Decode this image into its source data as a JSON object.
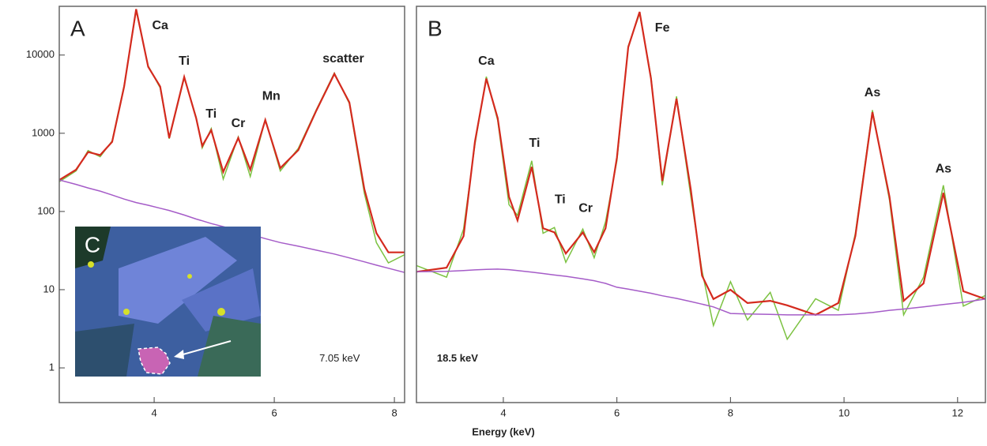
{
  "chart_data": [
    {
      "type": "line",
      "panel_label": "A",
      "log_y": true,
      "x": [
        2.42,
        2.7,
        2.9,
        3.1,
        3.3,
        3.5,
        3.7,
        3.9,
        4.1,
        4.25,
        4.5,
        4.7,
        4.8,
        4.95,
        5.15,
        5.4,
        5.6,
        5.85,
        6.1,
        6.4,
        6.7,
        7.0,
        7.25,
        7.5,
        7.7,
        7.9,
        8.17
      ],
      "series": [
        {
          "color": "#7cc242",
          "values": [
            240,
            330,
            600,
            500,
            800,
            4100,
            37000,
            7300,
            3800,
            850,
            5100,
            1600,
            650,
            1150,
            260,
            900,
            280,
            1500,
            330,
            640,
            2000,
            5900,
            2400,
            170,
            40,
            22,
            28
          ]
        },
        {
          "color": "#d42a1e",
          "values": [
            253,
            343,
            575,
            525,
            776,
            3960,
            38600,
            7080,
            3960,
            871,
            5250,
            1550,
            690,
            1096,
            320,
            871,
            343,
            1480,
            359,
            610,
            1950,
            5750,
            2480,
            192,
            53,
            30,
            30
          ]
        },
        {
          "color": "#a55cc8",
          "values": [
            253,
            222,
            200,
            182,
            162,
            144,
            130,
            120,
            110,
            103,
            90,
            80,
            76,
            70,
            64,
            57,
            51,
            45,
            40,
            36,
            32,
            28.6,
            25.5,
            22.7,
            20.6,
            18.8,
            16.6
          ]
        }
      ],
      "xlim": [
        2.42,
        8.17
      ],
      "xticks": [
        4,
        6,
        8
      ],
      "ylim": [
        0.36,
        42000
      ],
      "yticks": [
        1,
        10,
        100,
        1000,
        10000
      ],
      "annotations": [
        {
          "text": "Ca",
          "x": 4.1,
          "y": 23600
        },
        {
          "text": "Ti",
          "x": 4.5,
          "y": 8300
        },
        {
          "text": "Ti",
          "x": 4.95,
          "y": 1750
        },
        {
          "text": "Cr",
          "x": 5.4,
          "y": 1320
        },
        {
          "text": "Mn",
          "x": 5.95,
          "y": 2960
        },
        {
          "text": "scatter",
          "x": 7.15,
          "y": 8900
        }
      ],
      "energy_label": {
        "text": "7.05 keV",
        "x": 6.75,
        "y": 1.3
      },
      "inset_label": "C"
    },
    {
      "type": "line",
      "panel_label": "B",
      "log_y": true,
      "x": [
        2.47,
        3.0,
        3.3,
        3.5,
        3.7,
        3.9,
        4.1,
        4.25,
        4.5,
        4.7,
        4.9,
        5.1,
        5.4,
        5.6,
        5.8,
        6.0,
        6.2,
        6.4,
        6.6,
        6.8,
        7.05,
        7.3,
        7.5,
        7.7,
        8.0,
        8.3,
        8.7,
        9.0,
        9.5,
        9.9,
        10.2,
        10.5,
        10.8,
        11.05,
        11.4,
        11.75,
        12.1,
        12.49
      ],
      "series": [
        {
          "color": "#7cc242",
          "values": [
            28,
            22,
            60,
            350,
            1450,
            580,
            100,
            80,
            250,
            55,
            62,
            30,
            60,
            33,
            70,
            250,
            2750,
            5400,
            1450,
            150,
            960,
            120,
            25,
            8,
            20,
            9,
            16,
            6,
            14,
            11,
            55,
            720,
            110,
            10,
            22,
            150,
            12,
            15
          ]
        },
        {
          "color": "#d42a1e",
          "values": [
            24.6,
            26.8,
            51.8,
            372,
            1390,
            610,
            118,
            72,
            220,
            61,
            56,
            36,
            56,
            37,
            61,
            268,
            2680,
            5600,
            1390,
            164,
            915,
            138,
            22.7,
            13.9,
            16.9,
            12.8,
            13.4,
            12.2,
            10,
            12.8,
            51.8,
            690,
            118,
            13.4,
            19.3,
            128,
            16.4,
            13.9
          ]
        },
        {
          "color": "#a55cc8",
          "values": [
            24.6,
            24.8,
            25.2,
            25.6,
            25.9,
            26,
            25.7,
            25.2,
            24.4,
            23.7,
            23,
            22.4,
            21.2,
            20.4,
            19.3,
            17.8,
            17.1,
            16.4,
            15.7,
            14.9,
            14.1,
            13.2,
            12.5,
            11.8,
            10.3,
            10.2,
            10.1,
            10,
            10,
            10,
            10.2,
            10.5,
            11,
            11.3,
            11.8,
            12.4,
            13,
            13.9
          ]
        }
      ],
      "xlim": [
        2.47,
        12.49
      ],
      "xticks": [
        4,
        6,
        8,
        10,
        12
      ],
      "ylim": [
        1.6,
        6300
      ],
      "xlabel": "Energy (keV)",
      "annotations": [
        {
          "text": "Ca",
          "x": 3.7,
          "y": 2000
        },
        {
          "text": "Ti",
          "x": 4.55,
          "y": 360
        },
        {
          "text": "Ti",
          "x": 5.0,
          "y": 110
        },
        {
          "text": "Cr",
          "x": 5.45,
          "y": 92
        },
        {
          "text": "Fe",
          "x": 6.8,
          "y": 4000
        },
        {
          "text": "As",
          "x": 10.5,
          "y": 1030
        },
        {
          "text": "As",
          "x": 11.75,
          "y": 210
        }
      ],
      "energy_label": {
        "text": "18.5 keV",
        "x": 2.83,
        "y": 4.0
      }
    }
  ]
}
